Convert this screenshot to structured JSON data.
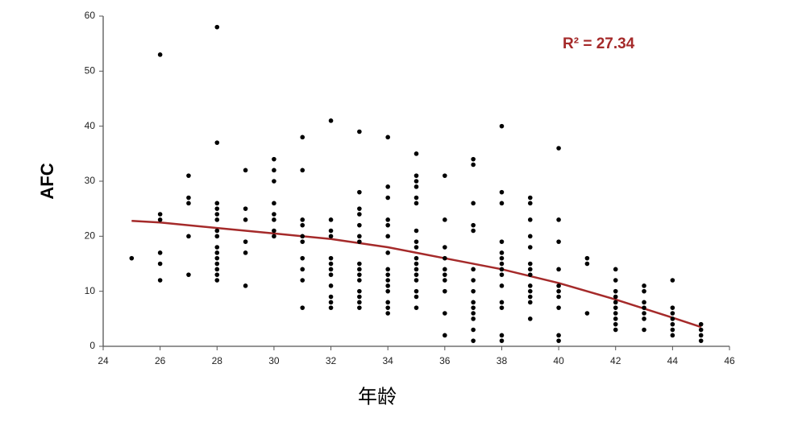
{
  "chart_data": {
    "type": "scatter",
    "annotation": "R² = 27.34",
    "xlabel": "年龄",
    "ylabel": "AFC",
    "xlim": [
      24,
      46
    ],
    "xticks": [
      24,
      26,
      28,
      30,
      32,
      34,
      36,
      38,
      40,
      42,
      44,
      46
    ],
    "ylim": [
      0,
      60
    ],
    "yticks": [
      0,
      10,
      20,
      30,
      40,
      50,
      60
    ],
    "color": "#000000",
    "x": [
      25,
      26,
      26,
      26,
      26,
      26,
      26,
      27,
      27,
      27,
      27,
      27,
      28,
      28,
      28,
      28,
      28,
      28,
      28,
      28,
      28,
      28,
      28,
      28,
      28,
      28,
      28,
      29,
      29,
      29,
      29,
      29,
      29,
      30,
      30,
      30,
      30,
      30,
      30,
      30,
      30,
      31,
      31,
      31,
      31,
      31,
      31,
      31,
      31,
      31,
      31,
      32,
      32,
      32,
      32,
      32,
      32,
      32,
      32,
      32,
      32,
      32,
      32,
      33,
      33,
      33,
      33,
      33,
      33,
      33,
      33,
      33,
      33,
      33,
      33,
      33,
      33,
      33,
      34,
      34,
      34,
      34,
      34,
      34,
      34,
      34,
      34,
      34,
      34,
      34,
      34,
      34,
      34,
      35,
      35,
      35,
      35,
      35,
      35,
      35,
      35,
      35,
      35,
      35,
      35,
      35,
      35,
      35,
      35,
      35,
      36,
      36,
      36,
      36,
      36,
      36,
      36,
      36,
      36,
      36,
      37,
      37,
      37,
      37,
      37,
      37,
      37,
      37,
      37,
      37,
      37,
      37,
      37,
      37,
      38,
      38,
      38,
      38,
      38,
      38,
      38,
      38,
      38,
      38,
      38,
      38,
      38,
      38,
      39,
      39,
      39,
      39,
      39,
      39,
      39,
      39,
      39,
      39,
      39,
      39,
      39,
      40,
      40,
      40,
      40,
      40,
      40,
      40,
      40,
      40,
      40,
      41,
      41,
      41,
      42,
      42,
      42,
      42,
      42,
      42,
      42,
      42,
      42,
      42,
      43,
      43,
      43,
      43,
      43,
      43,
      43,
      44,
      44,
      44,
      44,
      44,
      44,
      44,
      45,
      45,
      45,
      45
    ],
    "values": [
      16,
      53,
      24,
      23,
      17,
      15,
      12,
      31,
      27,
      26,
      20,
      13,
      58,
      37,
      26,
      25,
      24,
      23,
      21,
      20,
      18,
      17,
      16,
      15,
      14,
      13,
      12,
      32,
      25,
      23,
      19,
      17,
      11,
      34,
      32,
      30,
      26,
      24,
      23,
      21,
      20,
      38,
      32,
      23,
      22,
      20,
      19,
      16,
      14,
      12,
      7,
      41,
      23,
      21,
      20,
      16,
      15,
      14,
      13,
      11,
      9,
      8,
      7,
      39,
      28,
      25,
      24,
      22,
      20,
      19,
      15,
      14,
      13,
      12,
      10,
      9,
      8,
      7,
      38,
      29,
      27,
      23,
      22,
      20,
      17,
      14,
      13,
      12,
      11,
      10,
      8,
      7,
      6,
      35,
      31,
      30,
      29,
      27,
      26,
      21,
      19,
      18,
      16,
      15,
      14,
      13,
      12,
      10,
      9,
      7,
      31,
      23,
      18,
      16,
      14,
      13,
      12,
      10,
      6,
      2,
      34,
      33,
      26,
      22,
      21,
      14,
      12,
      10,
      8,
      7,
      6,
      5,
      3,
      1,
      40,
      28,
      26,
      19,
      17,
      16,
      15,
      14,
      13,
      11,
      8,
      7,
      2,
      1,
      27,
      26,
      23,
      20,
      18,
      15,
      14,
      13,
      11,
      10,
      9,
      8,
      5,
      36,
      23,
      19,
      14,
      11,
      10,
      9,
      7,
      2,
      1,
      16,
      15,
      6,
      14,
      12,
      10,
      9,
      8,
      7,
      6,
      5,
      4,
      3,
      11,
      10,
      8,
      7,
      6,
      5,
      3,
      12,
      7,
      6,
      5,
      4,
      3,
      2,
      4,
      3,
      2,
      1
    ],
    "fit": {
      "color": "#a52a2a",
      "x": [
        25,
        26,
        28,
        30,
        32,
        34,
        36,
        38,
        40,
        42,
        44,
        45
      ],
      "values": [
        22.8,
        22.5,
        21.5,
        20.5,
        19.5,
        18.0,
        16.0,
        14.0,
        11.5,
        8.5,
        5.2,
        3.5
      ]
    }
  }
}
